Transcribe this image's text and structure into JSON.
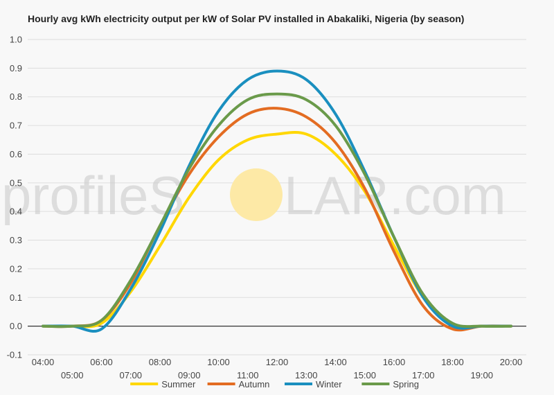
{
  "title": "Hourly avg kWh electricity output per kW of Solar PV installed in Abakaliki, Nigeria (by season)",
  "watermark": {
    "left": "profileS",
    "right": "LAR.com"
  },
  "colors": {
    "background": "#f8f8f8",
    "grid": "#dddddd",
    "zero_line": "#333333",
    "sun": "#fde9a6"
  },
  "chart_data": {
    "type": "line",
    "title": "Hourly avg kWh electricity output per kW of Solar PV installed in Abakaliki, Nigeria (by season)",
    "xlabel": "",
    "ylabel": "",
    "ylim": [
      -0.1,
      1.0
    ],
    "yticks": [
      "-0.1",
      "0.0",
      "0.1",
      "0.2",
      "0.3",
      "0.4",
      "0.5",
      "0.6",
      "0.7",
      "0.8",
      "0.9",
      "1.0"
    ],
    "x": [
      "04:00",
      "05:00",
      "06:00",
      "07:00",
      "08:00",
      "09:00",
      "10:00",
      "11:00",
      "12:00",
      "13:00",
      "14:00",
      "15:00",
      "16:00",
      "17:00",
      "18:00",
      "19:00",
      "20:00"
    ],
    "grid": true,
    "legend_position": "bottom",
    "series": [
      {
        "name": "Summer",
        "color": "#ffd700",
        "values": [
          0.0,
          0.0,
          0.01,
          0.12,
          0.28,
          0.45,
          0.58,
          0.65,
          0.67,
          0.67,
          0.6,
          0.47,
          0.28,
          0.1,
          0.0,
          0.0,
          0.0
        ]
      },
      {
        "name": "Autumn",
        "color": "#e36c22",
        "values": [
          0.0,
          0.0,
          0.02,
          0.15,
          0.35,
          0.53,
          0.66,
          0.74,
          0.76,
          0.73,
          0.64,
          0.48,
          0.26,
          0.07,
          -0.01,
          0.0,
          0.0
        ]
      },
      {
        "name": "Winter",
        "color": "#1a8fbf",
        "values": [
          0.0,
          0.0,
          -0.01,
          0.13,
          0.33,
          0.56,
          0.75,
          0.86,
          0.89,
          0.86,
          0.74,
          0.54,
          0.31,
          0.1,
          0.0,
          0.0,
          0.0
        ]
      },
      {
        "name": "Spring",
        "color": "#6a9a4a",
        "values": [
          0.0,
          0.0,
          0.02,
          0.16,
          0.35,
          0.55,
          0.7,
          0.79,
          0.81,
          0.79,
          0.7,
          0.53,
          0.31,
          0.11,
          0.01,
          0.0,
          0.0
        ]
      }
    ]
  }
}
